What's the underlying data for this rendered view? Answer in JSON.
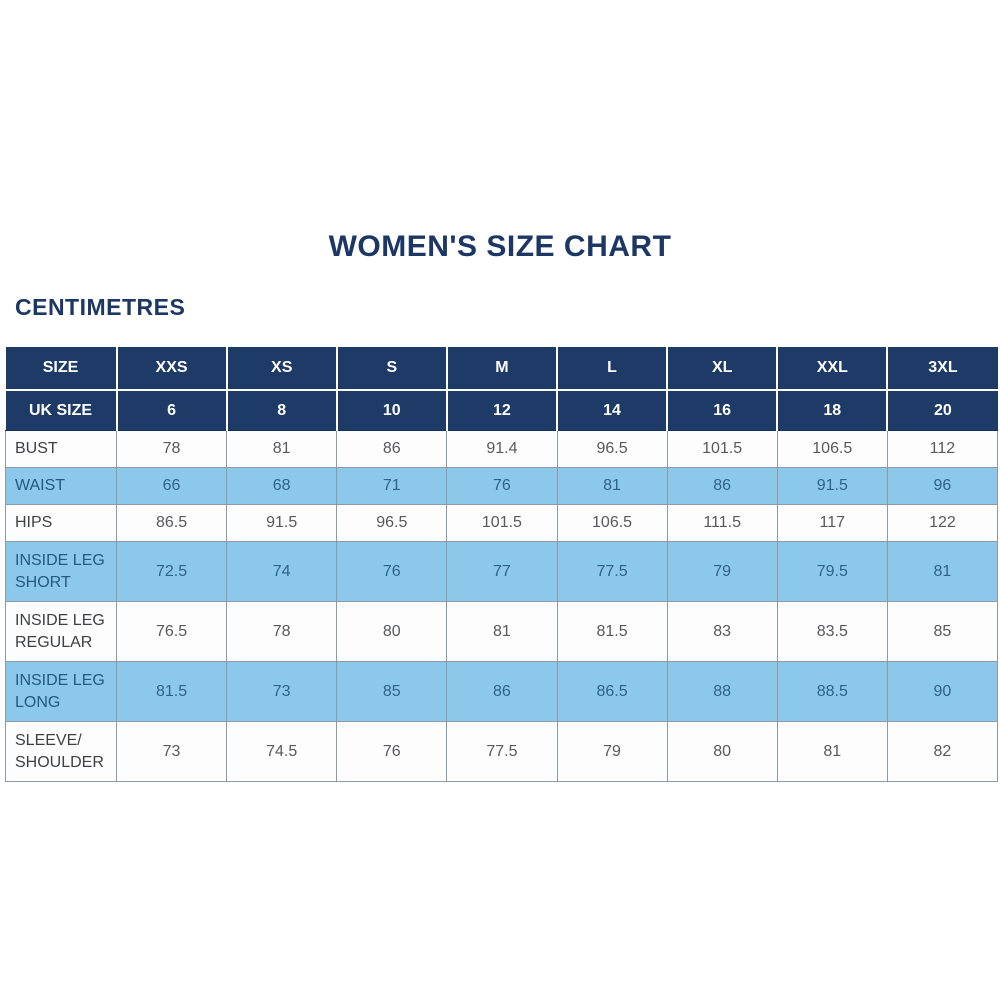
{
  "title": "WOMEN'S SIZE CHART",
  "subtitle": "CENTIMETRES",
  "colors": {
    "header_navy": "#1d3b66",
    "row_light_blue": "#8cc8e9",
    "title_navy": "#1c3763",
    "body_border_gray": "#8e99a4",
    "white_row_text": "#58595b",
    "blue_row_text": "#2e6386"
  },
  "chart_data": {
    "type": "table",
    "title": "WOMEN'S SIZE CHART",
    "unit_label": "CENTIMETRES",
    "size_header": {
      "label": "SIZE",
      "values": [
        "XXS",
        "XS",
        "S",
        "M",
        "L",
        "XL",
        "XXL",
        "3XL"
      ]
    },
    "uk_size_header": {
      "label": "UK SIZE",
      "values": [
        "6",
        "8",
        "10",
        "12",
        "14",
        "16",
        "18",
        "20"
      ]
    },
    "rows": [
      {
        "label": "BUST",
        "values": [
          "78",
          "81",
          "86",
          "91.4",
          "96.5",
          "101.5",
          "106.5",
          "112"
        ]
      },
      {
        "label": "WAIST",
        "values": [
          "66",
          "68",
          "71",
          "76",
          "81",
          "86",
          "91.5",
          "96"
        ]
      },
      {
        "label": "HIPS",
        "values": [
          "86.5",
          "91.5",
          "96.5",
          "101.5",
          "106.5",
          "111.5",
          "117",
          "122"
        ]
      },
      {
        "label": "INSIDE LEG SHORT",
        "values": [
          "72.5",
          "74",
          "76",
          "77",
          "77.5",
          "79",
          "79.5",
          "81"
        ]
      },
      {
        "label": "INSIDE LEG REGULAR",
        "values": [
          "76.5",
          "78",
          "80",
          "81",
          "81.5",
          "83",
          "83.5",
          "85"
        ]
      },
      {
        "label": "INSIDE LEG LONG",
        "values": [
          "81.5",
          "73",
          "85",
          "86",
          "86.5",
          "88",
          "88.5",
          "90"
        ]
      },
      {
        "label": "SLEEVE/ SHOULDER",
        "values": [
          "73",
          "74.5",
          "76",
          "77.5",
          "79",
          "80",
          "81",
          "82"
        ]
      }
    ]
  }
}
